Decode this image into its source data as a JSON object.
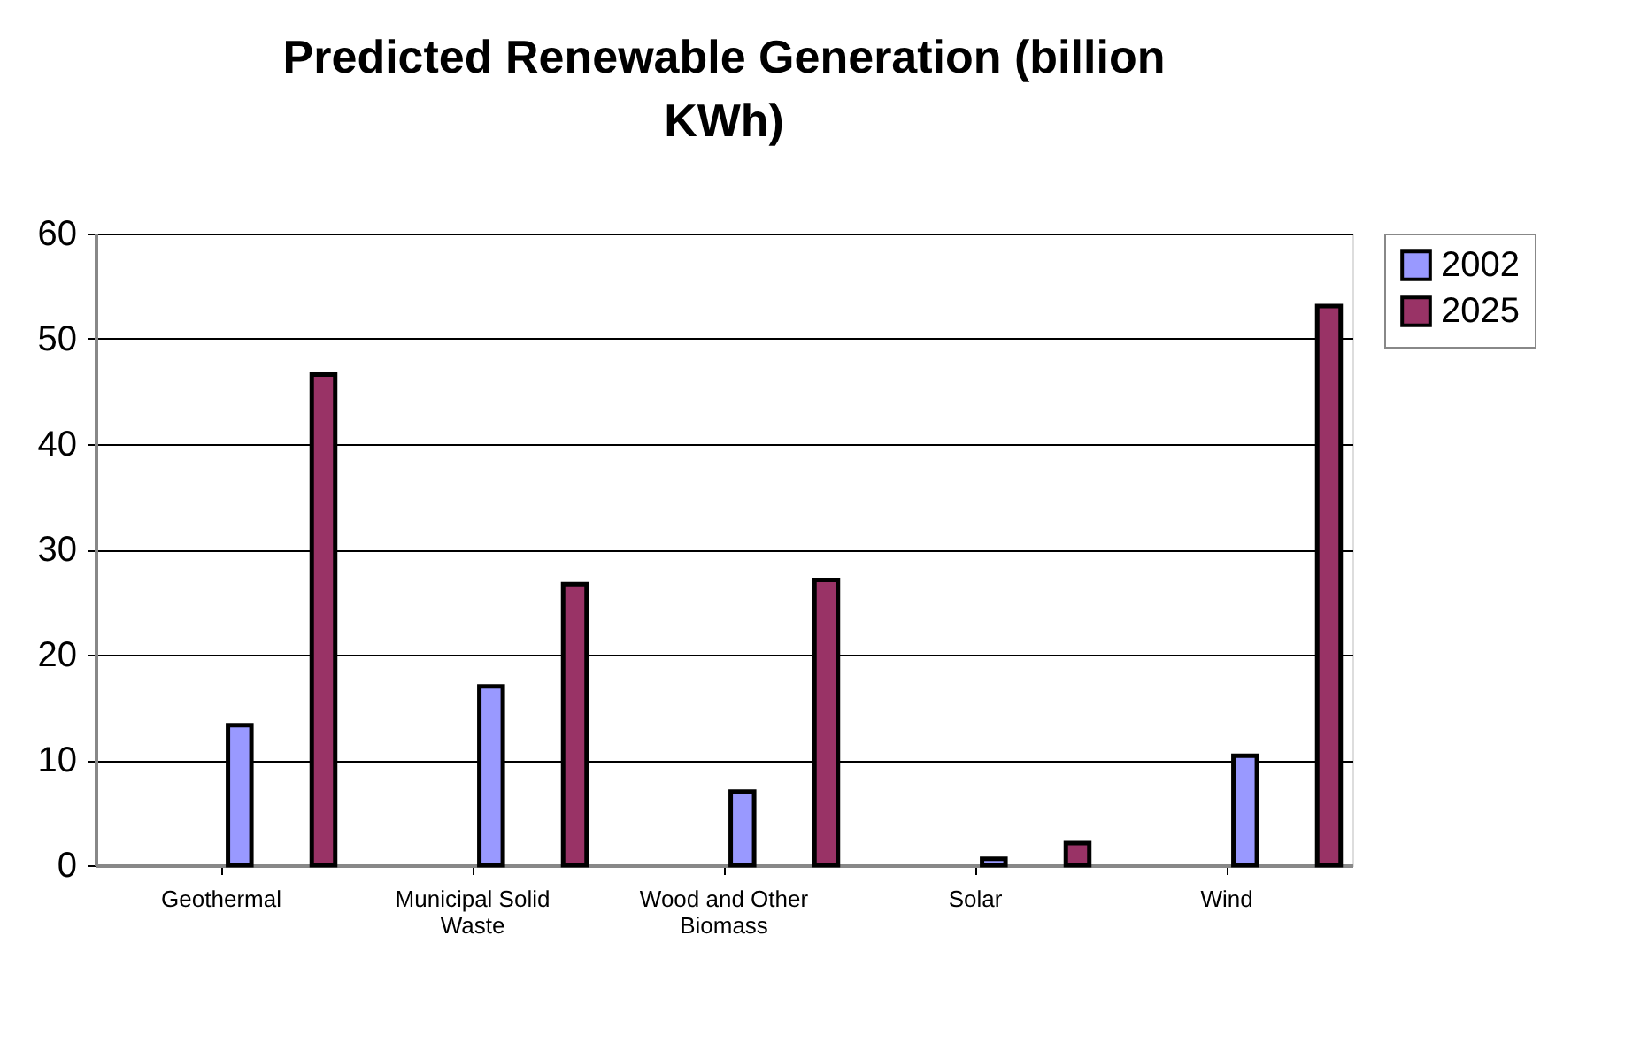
{
  "chart_data": {
    "type": "bar",
    "title": "Predicted Renewable Generation (billion KWh)",
    "categories": [
      "Geothermal",
      "Municipal Solid Waste",
      "Wood and Other Biomass",
      "Solar",
      "Wind"
    ],
    "series": [
      {
        "name": "2002",
        "color": "#9999ff",
        "values": [
          13.3,
          17.0,
          7.0,
          0.6,
          10.4
        ]
      },
      {
        "name": "2025",
        "color": "#993366",
        "values": [
          46.6,
          26.7,
          27.1,
          2.1,
          53.1
        ]
      }
    ],
    "ylim": [
      0,
      60
    ],
    "yticks": [
      0,
      10,
      20,
      30,
      40,
      50,
      60
    ],
    "grid": "y",
    "legend": "right"
  }
}
